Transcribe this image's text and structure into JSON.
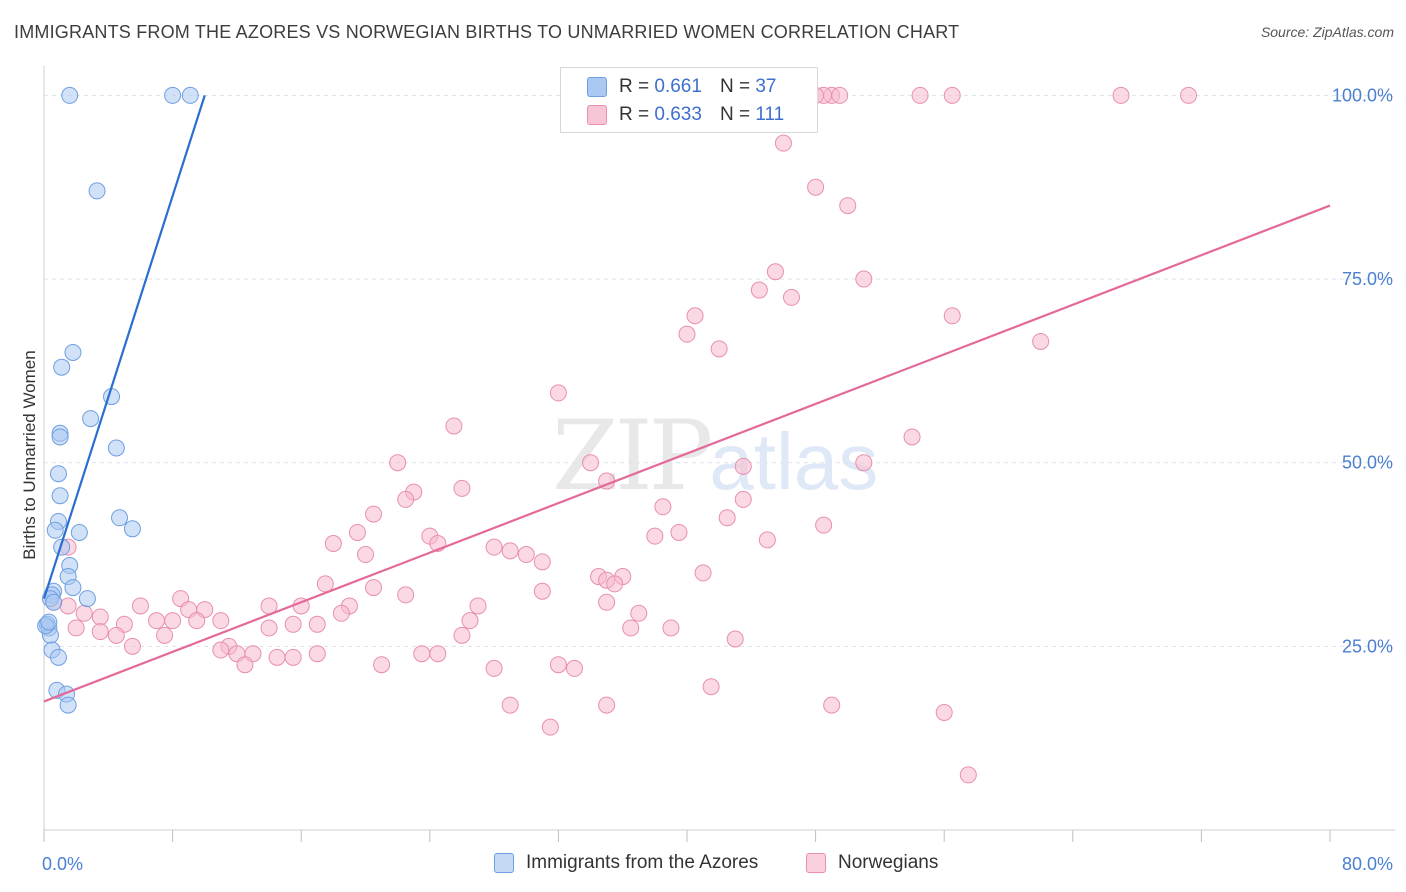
{
  "title": "IMMIGRANTS FROM THE AZORES VS NORWEGIAN BIRTHS TO UNMARRIED WOMEN CORRELATION CHART",
  "source": "Source: ZipAtlas.com",
  "watermark": {
    "zip": "ZIP",
    "atlas": "atlas"
  },
  "legend": {
    "r_label": "R =",
    "n_label": "N =",
    "rows": [
      {
        "r": "0.661",
        "n": "37"
      },
      {
        "r": "0.633",
        "n": "111"
      }
    ]
  },
  "colors": {
    "blue_fill": "#aac8f2",
    "blue_stroke": "#6f9fe0",
    "blue_line": "#2a6fd0",
    "pink_fill": "#f7b9cd",
    "pink_stroke": "#e88fae",
    "pink_line": "#e4699a",
    "axis_text": "#4a7fd1",
    "grid": "#dde3ea"
  },
  "chart_data": {
    "type": "scatter",
    "title": "IMMIGRANTS FROM THE AZORES VS NORWEGIAN BIRTHS TO UNMARRIED WOMEN CORRELATION CHART",
    "xlabel": "",
    "ylabel": "Births to Unmarried Women",
    "xlim": [
      0,
      80
    ],
    "ylim": [
      0,
      104
    ],
    "x_tick_labels": [
      "0.0%",
      "80.0%"
    ],
    "y_ticks": [
      25,
      50,
      75,
      100
    ],
    "y_tick_labels": [
      "25.0%",
      "50.0%",
      "75.0%",
      "100.0%"
    ],
    "series": [
      {
        "name": "Immigrants from the Azores",
        "color": "#aac8f2",
        "r": 0.661,
        "n": 37,
        "trend": {
          "x": [
            0.0,
            10.0
          ],
          "y": [
            31.5,
            100.0
          ]
        },
        "points": [
          [
            1.6,
            100
          ],
          [
            8.0,
            100
          ],
          [
            9.1,
            100
          ],
          [
            3.3,
            87
          ],
          [
            1.8,
            65
          ],
          [
            1.1,
            63
          ],
          [
            4.2,
            59
          ],
          [
            2.9,
            56
          ],
          [
            1.0,
            54
          ],
          [
            1.0,
            53.5
          ],
          [
            4.5,
            52
          ],
          [
            0.9,
            48.5
          ],
          [
            1.0,
            45.5
          ],
          [
            4.7,
            42.5
          ],
          [
            5.5,
            41
          ],
          [
            0.9,
            42
          ],
          [
            2.2,
            40.5
          ],
          [
            0.7,
            40.8
          ],
          [
            1.1,
            38.5
          ],
          [
            1.6,
            36
          ],
          [
            1.5,
            34.5
          ],
          [
            1.8,
            33
          ],
          [
            0.6,
            32.5
          ],
          [
            0.5,
            32
          ],
          [
            2.7,
            31.5
          ],
          [
            0.4,
            31.5
          ],
          [
            0.6,
            31
          ],
          [
            0.2,
            28
          ],
          [
            0.3,
            27.5
          ],
          [
            0.4,
            26.5
          ],
          [
            0.5,
            24.5
          ],
          [
            0.9,
            23.5
          ],
          [
            0.8,
            19
          ],
          [
            1.4,
            18.5
          ],
          [
            1.5,
            17
          ],
          [
            0.1,
            27.8
          ],
          [
            0.3,
            28.3
          ]
        ]
      },
      {
        "name": "Norwegians",
        "color": "#f7b9cd",
        "r": 0.633,
        "n": 111,
        "trend": {
          "x": [
            0.0,
            80.0
          ],
          "y": [
            17.5,
            85.0
          ]
        },
        "points": [
          [
            49,
            100
          ],
          [
            48.5,
            100
          ],
          [
            48,
            100
          ],
          [
            49.5,
            100
          ],
          [
            54.5,
            100
          ],
          [
            56.5,
            100
          ],
          [
            67,
            100
          ],
          [
            71.2,
            100
          ],
          [
            46,
            93.5
          ],
          [
            48,
            87.5
          ],
          [
            50,
            85
          ],
          [
            45.5,
            76
          ],
          [
            51,
            75
          ],
          [
            44.5,
            73.5
          ],
          [
            46.5,
            72.5
          ],
          [
            40.5,
            70
          ],
          [
            40,
            67.5
          ],
          [
            56.5,
            70
          ],
          [
            62,
            66.5
          ],
          [
            42,
            65.5
          ],
          [
            32,
            59.5
          ],
          [
            25.5,
            55
          ],
          [
            54,
            53.5
          ],
          [
            51,
            50
          ],
          [
            34,
            50
          ],
          [
            43.5,
            49.5
          ],
          [
            22,
            50
          ],
          [
            35,
            47.5
          ],
          [
            26,
            46.5
          ],
          [
            23,
            46
          ],
          [
            22.5,
            45
          ],
          [
            43.5,
            45
          ],
          [
            38.5,
            44
          ],
          [
            20.5,
            43
          ],
          [
            42.5,
            42.5
          ],
          [
            48.5,
            41.5
          ],
          [
            39.5,
            40.5
          ],
          [
            38,
            40
          ],
          [
            19.5,
            40.5
          ],
          [
            24,
            40
          ],
          [
            24.5,
            39
          ],
          [
            18,
            39
          ],
          [
            45,
            39.5
          ],
          [
            28,
            38.5
          ],
          [
            29,
            38
          ],
          [
            30,
            37.5
          ],
          [
            20,
            37.5
          ],
          [
            31,
            36.5
          ],
          [
            41,
            35
          ],
          [
            34.5,
            34.5
          ],
          [
            35,
            34
          ],
          [
            36,
            34.5
          ],
          [
            35.5,
            33.5
          ],
          [
            17.5,
            33.5
          ],
          [
            20.5,
            33
          ],
          [
            31,
            32.5
          ],
          [
            22.5,
            32
          ],
          [
            8.5,
            31.5
          ],
          [
            35,
            31
          ],
          [
            27,
            30.5
          ],
          [
            19,
            30.5
          ],
          [
            16,
            30.5
          ],
          [
            14,
            30.5
          ],
          [
            6,
            30.5
          ],
          [
            9,
            30
          ],
          [
            10,
            30
          ],
          [
            18.5,
            29.5
          ],
          [
            37,
            29.5
          ],
          [
            2.5,
            29.5
          ],
          [
            3.5,
            29
          ],
          [
            26.5,
            28.5
          ],
          [
            17,
            28
          ],
          [
            9.5,
            28.5
          ],
          [
            11,
            28.5
          ],
          [
            15.5,
            28
          ],
          [
            7,
            28.5
          ],
          [
            8,
            28.5
          ],
          [
            5,
            28
          ],
          [
            2,
            27.5
          ],
          [
            14,
            27.5
          ],
          [
            36.5,
            27.5
          ],
          [
            39,
            27.5
          ],
          [
            26,
            26.5
          ],
          [
            3.5,
            27
          ],
          [
            4.5,
            26.5
          ],
          [
            7.5,
            26.5
          ],
          [
            43,
            26
          ],
          [
            11.5,
            25
          ],
          [
            11,
            24.5
          ],
          [
            12,
            24
          ],
          [
            17,
            24
          ],
          [
            5.5,
            25
          ],
          [
            13,
            24
          ],
          [
            24.5,
            24
          ],
          [
            14.5,
            23.5
          ],
          [
            15.5,
            23.5
          ],
          [
            23.5,
            24
          ],
          [
            28,
            22
          ],
          [
            33,
            22
          ],
          [
            32,
            22.5
          ],
          [
            21,
            22.5
          ],
          [
            12.5,
            22.5
          ],
          [
            41.5,
            19.5
          ],
          [
            29,
            17
          ],
          [
            49,
            17
          ],
          [
            35,
            17
          ],
          [
            56,
            16
          ],
          [
            31.5,
            14
          ],
          [
            57.5,
            7.5
          ],
          [
            1.5,
            38.5
          ],
          [
            0.6,
            31
          ],
          [
            1.5,
            30.5
          ]
        ]
      }
    ]
  }
}
